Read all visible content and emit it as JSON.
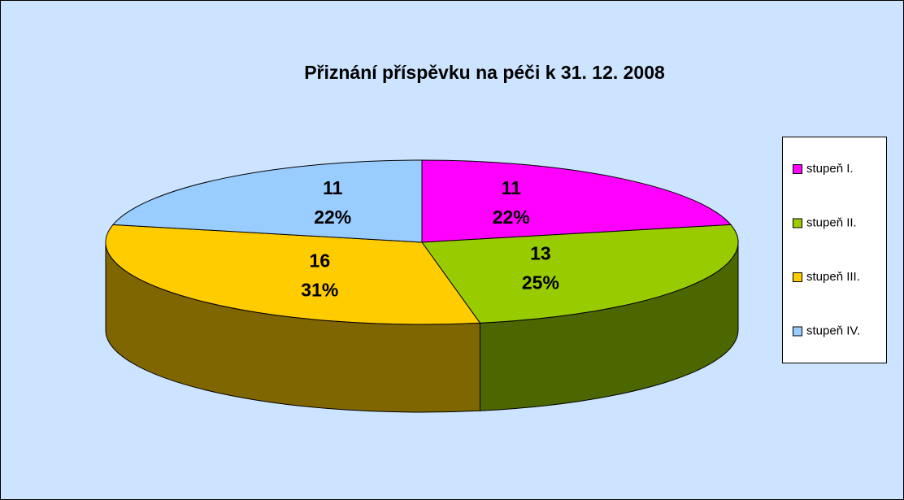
{
  "chart_data": {
    "type": "pie3d",
    "title": "Přiznání příspěvku na péči k 31. 12. 2008",
    "categories": [
      "stupeň I.",
      "stupeň II.",
      "stupeň III.",
      "stupeň IV."
    ],
    "values": [
      11,
      13,
      16,
      11
    ],
    "percent_labels": [
      "22%",
      "25%",
      "31%",
      "22%"
    ],
    "colors": [
      "#FF00FF",
      "#99CC00",
      "#FFCC00",
      "#99CCFF"
    ],
    "side_colors": [
      "#800080",
      "#4C6600",
      "#806600",
      "#4C6680"
    ],
    "legend": "right"
  }
}
